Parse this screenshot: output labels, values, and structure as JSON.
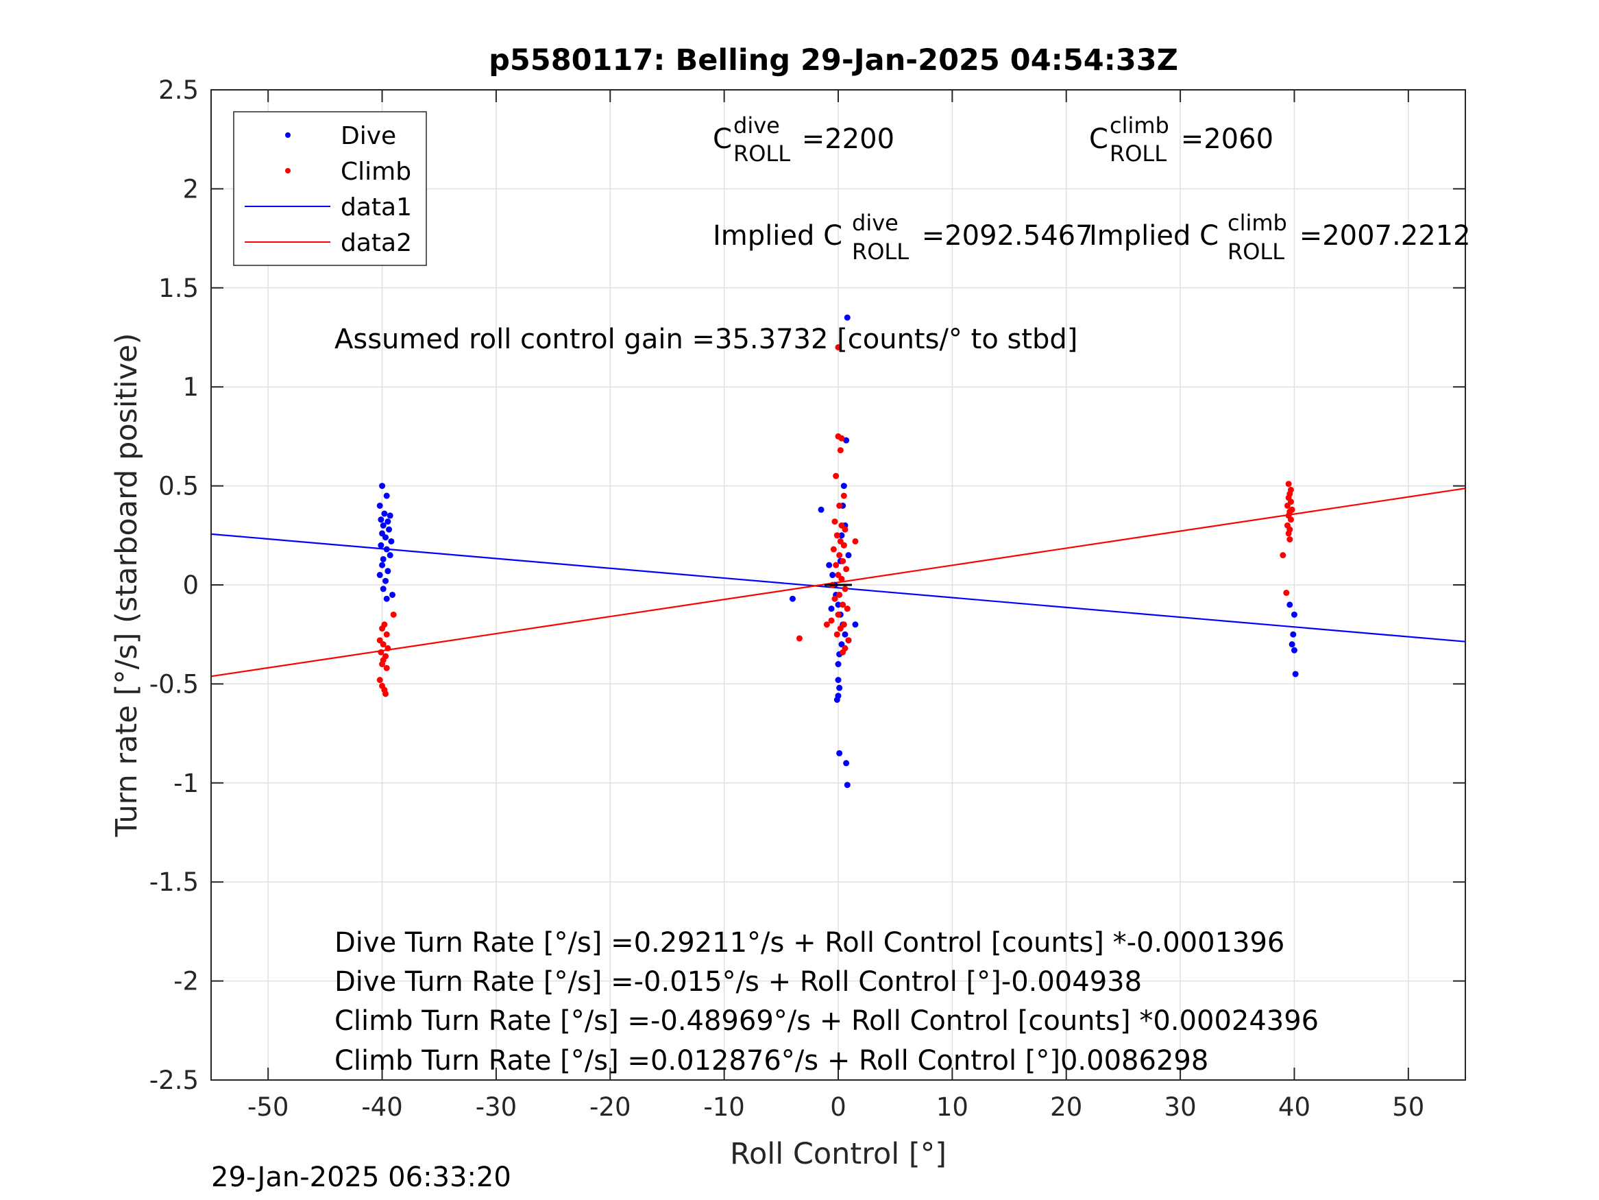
{
  "chart_data": {
    "type": "scatter",
    "title": "p5580117: Belling 29-Jan-2025 04:54:33Z",
    "xlabel": "Roll Control [°]",
    "ylabel": "Turn rate [°/s] (starboard positive)",
    "xlim": [
      -55,
      55
    ],
    "ylim": [
      -2.5,
      2.5
    ],
    "xticks": [
      -50,
      -40,
      -30,
      -20,
      -10,
      0,
      10,
      20,
      30,
      40,
      50
    ],
    "xtick_labels": [
      "-50",
      "-40",
      "-30",
      "-20",
      "-10",
      "0",
      "10",
      "20",
      "30",
      "40",
      "50"
    ],
    "yticks": [
      -2.5,
      -2,
      -1.5,
      -1,
      -0.5,
      0,
      0.5,
      1,
      1.5,
      2,
      2.5
    ],
    "ytick_labels": [
      "-2.5",
      "-2",
      "-1.5",
      "-1",
      "-0.5",
      "0",
      "0.5",
      "1",
      "1.5",
      "2",
      "2.5"
    ],
    "grid": true,
    "legend_position": "top-left",
    "colors": {
      "dive": "#0000ff",
      "climb": "#ff0000"
    },
    "series": [
      {
        "name": "Dive",
        "kind": "points",
        "color": "#0000ff",
        "points": [
          [
            -40.0,
            0.5
          ],
          [
            -39.6,
            0.45
          ],
          [
            -40.2,
            0.4
          ],
          [
            -39.8,
            0.36
          ],
          [
            -39.3,
            0.35
          ],
          [
            -40.1,
            0.33
          ],
          [
            -39.5,
            0.32
          ],
          [
            -39.9,
            0.3
          ],
          [
            -39.4,
            0.28
          ],
          [
            -40.0,
            0.26
          ],
          [
            -39.7,
            0.24
          ],
          [
            -39.2,
            0.22
          ],
          [
            -40.1,
            0.2
          ],
          [
            -39.6,
            0.18
          ],
          [
            -39.3,
            0.15
          ],
          [
            -39.9,
            0.13
          ],
          [
            -40.0,
            0.1
          ],
          [
            -39.5,
            0.07
          ],
          [
            -40.2,
            0.05
          ],
          [
            -39.7,
            0.02
          ],
          [
            -39.9,
            -0.02
          ],
          [
            -39.1,
            -0.05
          ],
          [
            -39.6,
            -0.07
          ],
          [
            -0.8,
            0.1
          ],
          [
            -0.5,
            0.05
          ],
          [
            -0.3,
            0.0
          ],
          [
            -0.2,
            -0.05
          ],
          [
            0.0,
            -0.1
          ],
          [
            0.2,
            -0.15
          ],
          [
            0.4,
            -0.2
          ],
          [
            0.6,
            -0.25
          ],
          [
            0.3,
            -0.3
          ],
          [
            0.1,
            -0.35
          ],
          [
            0.0,
            -0.4
          ],
          [
            0.0,
            -0.48
          ],
          [
            0.1,
            -0.52
          ],
          [
            0.0,
            -0.56
          ],
          [
            -0.1,
            -0.58
          ],
          [
            0.1,
            -0.85
          ],
          [
            0.7,
            -0.9
          ],
          [
            0.8,
            -1.01
          ],
          [
            0.5,
            0.2
          ],
          [
            0.3,
            0.25
          ],
          [
            0.6,
            0.3
          ],
          [
            0.4,
            0.4
          ],
          [
            0.5,
            0.5
          ],
          [
            0.7,
            0.73
          ],
          [
            0.8,
            1.35
          ],
          [
            -1.5,
            0.38
          ],
          [
            -4.0,
            -0.07
          ],
          [
            1.5,
            -0.2
          ],
          [
            0.9,
            0.15
          ],
          [
            -0.6,
            -0.12
          ],
          [
            0.2,
            0.12
          ],
          [
            0.9,
            -0.28
          ],
          [
            39.6,
            -0.1
          ],
          [
            40.0,
            -0.15
          ],
          [
            39.9,
            -0.25
          ],
          [
            39.8,
            -0.3
          ],
          [
            40.0,
            -0.33
          ],
          [
            40.1,
            -0.45
          ]
        ]
      },
      {
        "name": "Climb",
        "kind": "points",
        "color": "#ff0000",
        "points": [
          [
            -39.0,
            -0.15
          ],
          [
            -39.8,
            -0.2
          ],
          [
            -40.0,
            -0.22
          ],
          [
            -39.6,
            -0.25
          ],
          [
            -40.2,
            -0.28
          ],
          [
            -39.9,
            -0.3
          ],
          [
            -39.5,
            -0.32
          ],
          [
            -40.1,
            -0.34
          ],
          [
            -39.7,
            -0.36
          ],
          [
            -39.9,
            -0.38
          ],
          [
            -40.0,
            -0.4
          ],
          [
            -39.6,
            -0.42
          ],
          [
            -40.2,
            -0.48
          ],
          [
            -40.0,
            -0.51
          ],
          [
            -39.8,
            -0.53
          ],
          [
            -39.7,
            -0.55
          ],
          [
            0.0,
            0.75
          ],
          [
            0.3,
            0.74
          ],
          [
            0.2,
            0.68
          ],
          [
            -0.2,
            0.55
          ],
          [
            0.5,
            0.45
          ],
          [
            0.1,
            0.4
          ],
          [
            -0.3,
            0.32
          ],
          [
            0.3,
            0.3
          ],
          [
            0.6,
            0.28
          ],
          [
            -0.1,
            0.25
          ],
          [
            0.2,
            0.22
          ],
          [
            0.5,
            0.2
          ],
          [
            -0.4,
            0.18
          ],
          [
            0.1,
            0.15
          ],
          [
            0.4,
            0.12
          ],
          [
            -0.2,
            0.1
          ],
          [
            0.7,
            0.08
          ],
          [
            0.0,
            0.05
          ],
          [
            0.3,
            0.03
          ],
          [
            -0.5,
            0.0
          ],
          [
            0.6,
            -0.02
          ],
          [
            0.1,
            -0.05
          ],
          [
            -0.3,
            -0.07
          ],
          [
            0.4,
            -0.1
          ],
          [
            0.8,
            -0.12
          ],
          [
            0.0,
            -0.15
          ],
          [
            -0.6,
            -0.18
          ],
          [
            0.5,
            -0.2
          ],
          [
            0.2,
            -0.22
          ],
          [
            -0.1,
            -0.25
          ],
          [
            0.9,
            -0.28
          ],
          [
            0.6,
            -0.32
          ],
          [
            0.4,
            -0.34
          ],
          [
            1.5,
            0.22
          ],
          [
            -1.0,
            -0.2
          ],
          [
            -3.4,
            -0.27
          ],
          [
            0.0,
            1.2
          ],
          [
            39.5,
            0.51
          ],
          [
            39.7,
            0.48
          ],
          [
            39.6,
            0.46
          ],
          [
            39.5,
            0.44
          ],
          [
            39.7,
            0.42
          ],
          [
            39.4,
            0.4
          ],
          [
            39.8,
            0.38
          ],
          [
            39.6,
            0.37
          ],
          [
            39.5,
            0.35
          ],
          [
            39.7,
            0.33
          ],
          [
            39.4,
            0.3
          ],
          [
            39.6,
            0.28
          ],
          [
            39.5,
            0.26
          ],
          [
            39.6,
            0.23
          ],
          [
            39.0,
            0.15
          ],
          [
            39.3,
            -0.04
          ]
        ]
      },
      {
        "name": "data1",
        "kind": "line",
        "color": "#0000ff",
        "x": [
          -55,
          55
        ],
        "y": [
          0.2567,
          -0.2864
        ]
      },
      {
        "name": "data2",
        "kind": "line",
        "color": "#ff0000",
        "x": [
          -55,
          55
        ],
        "y": [
          -0.4617,
          0.4875
        ]
      }
    ],
    "annotations": {
      "c_dive_main": "C",
      "c_dive_sup": "dive",
      "c_dive_sub": "ROLL",
      "c_dive_val": " =2200",
      "c_climb_main": "C",
      "c_climb_sup": "climb",
      "c_climb_sub": "ROLL",
      "c_climb_val": " =2060",
      "implied_dive_prefix": "Implied C",
      "implied_dive_sup": "dive",
      "implied_dive_sub": "ROLL",
      "implied_dive_val": " =2092.5467",
      "implied_climb_prefix": "Implied C",
      "implied_climb_sup": "climb",
      "implied_climb_sub": "ROLL",
      "implied_climb_val": " =2007.2212",
      "gain": "Assumed roll control gain =35.3732 [counts/° to stbd]",
      "eq1": "Dive Turn Rate [°/s] =0.29211°/s + Roll Control [counts] *-0.0001396",
      "eq2": "Dive Turn Rate [°/s] =-0.015°/s + Roll Control [°]-0.004938",
      "eq3": "Climb Turn Rate [°/s] =-0.48969°/s + Roll Control [counts] *0.00024396",
      "eq4": "Climb Turn Rate [°/s] =0.012876°/s + Roll Control [°]0.0086298"
    },
    "footer_timestamp": "29-Jan-2025 06:33:20"
  }
}
